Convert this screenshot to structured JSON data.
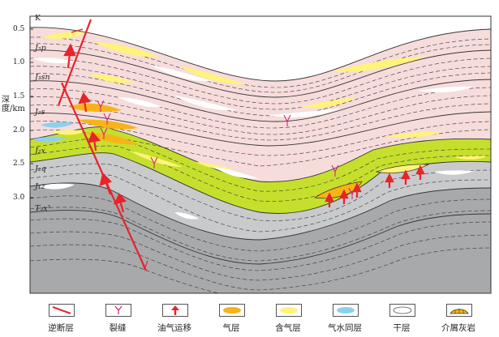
{
  "axis": {
    "ylabel": "深度/km",
    "ticks": [
      "0.5",
      "1.0",
      "1.5",
      "2.0",
      "2.5",
      "3.0"
    ]
  },
  "strata": {
    "K": "K",
    "J3p": "J₃p",
    "J3sn": "J₃sn",
    "J2s": "J₂s",
    "J2x": "J₂x",
    "J2q": "J₂q",
    "J1z": "J₁z",
    "T3x": "T₃x⁵"
  },
  "legend": [
    {
      "key": "thrust-fault",
      "label": "逆断层",
      "icon": "red-double-line-icon"
    },
    {
      "key": "fracture",
      "label": "裂缝",
      "icon": "fracture-y-icon"
    },
    {
      "key": "migration",
      "label": "油气运移",
      "icon": "red-arrow-icon"
    },
    {
      "key": "gas-layer",
      "label": "气层",
      "icon": "orange-lens-icon"
    },
    {
      "key": "gas-bearing",
      "label": "含气层",
      "icon": "yellow-lens-icon"
    },
    {
      "key": "gas-water",
      "label": "气水同层",
      "icon": "blue-lens-icon"
    },
    {
      "key": "dry-layer",
      "label": "干层",
      "icon": "white-lens-icon"
    },
    {
      "key": "bioclastic",
      "label": "介屑灰岩",
      "icon": "shell-limestone-icon"
    }
  ],
  "colors": {
    "pink": "#f7dcdc",
    "green": "#c6df2c",
    "gray": "#a8a9ab",
    "fault": "#e8232a",
    "gas_layer": "#f6b418",
    "gas_bearing": "#fff37a",
    "gas_water": "#8fcfee"
  }
}
